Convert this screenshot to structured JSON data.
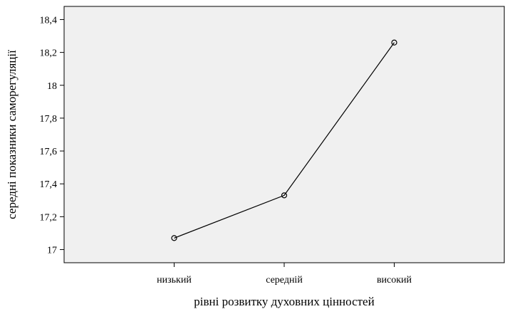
{
  "chart_data": {
    "type": "line",
    "title": "",
    "xlabel": "рівні розвитку духовних цінностей",
    "ylabel": "середні показники саморегуляції",
    "categories": [
      "низький",
      "середній",
      "високий"
    ],
    "series": [
      {
        "values": [
          17.07,
          17.33,
          18.26
        ]
      }
    ],
    "ylim": [
      16.92,
      18.48
    ],
    "yticks": [
      17,
      17.2,
      17.4,
      17.6,
      17.8,
      18,
      18.2,
      18.4
    ],
    "ytick_labels": [
      "17",
      "17,2",
      "17,4",
      "17,6",
      "17,8",
      "18",
      "18,2",
      "18,4"
    ],
    "grid": false,
    "marker": "open-circle",
    "colors": {
      "plot_bg": "#f0f0f0",
      "line": "#000000",
      "axis": "#000000"
    }
  }
}
